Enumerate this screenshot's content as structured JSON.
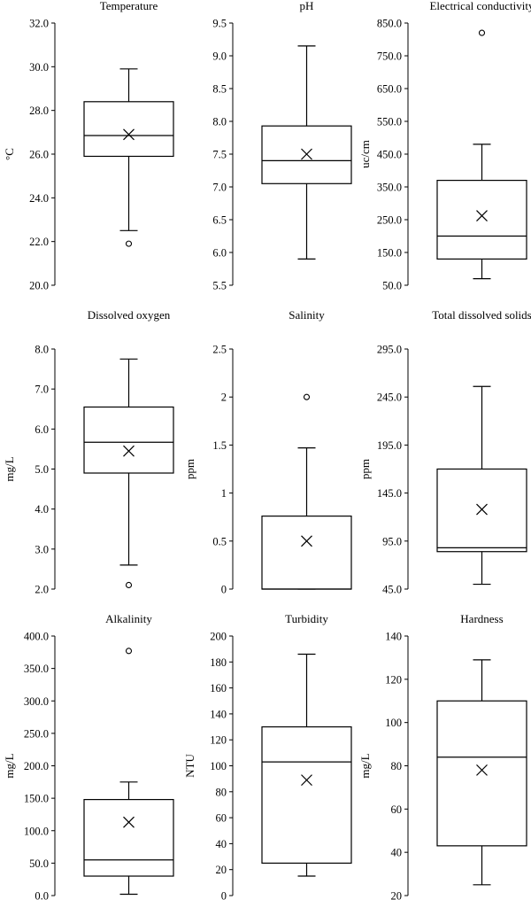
{
  "chart_data": [
    {
      "type": "box",
      "title": "Temperature",
      "ylabel": "°C",
      "ylim": [
        20,
        32
      ],
      "ticks": [
        20,
        22,
        24,
        26,
        28,
        30,
        32
      ],
      "tick_labels": [
        "20.0",
        "22.0",
        "24.0",
        "26.0",
        "28.0",
        "30.0",
        "32.0"
      ],
      "whisker_low": 22.5,
      "q1": 25.9,
      "median": 26.85,
      "q3": 28.4,
      "whisker_high": 29.9,
      "mean": 26.9,
      "outliers": [
        21.9
      ]
    },
    {
      "type": "box",
      "title": "pH",
      "ylabel": "",
      "ylim": [
        5.5,
        9.5
      ],
      "ticks": [
        5.5,
        6.0,
        6.5,
        7.0,
        7.5,
        8.0,
        8.5,
        9.0,
        9.5
      ],
      "tick_labels": [
        "5.5",
        "6.0",
        "6.5",
        "7.0",
        "7.5",
        "8.0",
        "8.5",
        "9.0",
        "9.5"
      ],
      "whisker_low": 5.9,
      "q1": 7.05,
      "median": 7.4,
      "q3": 7.93,
      "whisker_high": 9.15,
      "mean": 7.5,
      "outliers": []
    },
    {
      "type": "box",
      "title": "Electrical conductivity",
      "ylabel": "uc/cm",
      "ylim": [
        50,
        850
      ],
      "ticks": [
        50,
        150,
        250,
        350,
        450,
        550,
        650,
        750,
        850
      ],
      "tick_labels": [
        "50.0",
        "150.0",
        "250.0",
        "350.0",
        "450.0",
        "550.0",
        "650.0",
        "750.0",
        "850.0"
      ],
      "whisker_low": 70,
      "q1": 130,
      "median": 200,
      "q3": 370,
      "whisker_high": 480,
      "mean": 262,
      "outliers": [
        820
      ]
    },
    {
      "type": "box",
      "title": "Dissolved oxygen",
      "ylabel": "mg/L",
      "ylim": [
        2,
        8
      ],
      "ticks": [
        2,
        3,
        4,
        5,
        6,
        7,
        8
      ],
      "tick_labels": [
        "2.0",
        "3.0",
        "4.0",
        "5.0",
        "6.0",
        "7.0",
        "8.0"
      ],
      "whisker_low": 2.6,
      "q1": 4.9,
      "median": 5.67,
      "q3": 6.55,
      "whisker_high": 7.75,
      "mean": 5.45,
      "outliers": [
        2.1
      ]
    },
    {
      "type": "box",
      "title": "Salinity",
      "ylabel": "ppm",
      "ylim": [
        0,
        2.5
      ],
      "ticks": [
        0,
        0.5,
        1,
        1.5,
        2,
        2.5
      ],
      "tick_labels": [
        "0",
        "0.5",
        "1",
        "1.5",
        "2",
        "2.5"
      ],
      "whisker_low": 0,
      "q1": 0,
      "median": 0,
      "q3": 0.76,
      "whisker_high": 1.47,
      "mean": 0.5,
      "outliers": [
        2.0
      ]
    },
    {
      "type": "box",
      "title": "Total dissolved solids",
      "ylabel": "ppm",
      "ylim": [
        45,
        295
      ],
      "ticks": [
        45,
        95,
        145,
        195,
        245,
        295
      ],
      "tick_labels": [
        "45.0",
        "95.0",
        "145.0",
        "195.0",
        "245.0",
        "295.0"
      ],
      "whisker_low": 50,
      "q1": 84,
      "median": 88,
      "q3": 170,
      "whisker_high": 256,
      "mean": 128,
      "outliers": []
    },
    {
      "type": "box",
      "title": "Alkalinity",
      "ylabel": "mg/L",
      "ylim": [
        0,
        400
      ],
      "ticks": [
        0,
        50,
        100,
        150,
        200,
        250,
        300,
        350,
        400
      ],
      "tick_labels": [
        "0.0",
        "50.0",
        "100.0",
        "150.0",
        "200.0",
        "250.0",
        "300.0",
        "350.0",
        "400.0"
      ],
      "whisker_low": 2,
      "q1": 30,
      "median": 55,
      "q3": 148,
      "whisker_high": 175,
      "mean": 113,
      "outliers": [
        377
      ]
    },
    {
      "type": "box",
      "title": "Turbidity",
      "ylabel": "NTU",
      "ylim": [
        0,
        200
      ],
      "ticks": [
        0,
        20,
        40,
        60,
        80,
        100,
        120,
        140,
        160,
        180,
        200
      ],
      "tick_labels": [
        "0",
        "20",
        "40",
        "60",
        "80",
        "100",
        "120",
        "140",
        "160",
        "180",
        "200"
      ],
      "whisker_low": 15,
      "q1": 25,
      "median": 103,
      "q3": 130,
      "whisker_high": 186,
      "mean": 89,
      "outliers": []
    },
    {
      "type": "box",
      "title": "Hardness",
      "ylabel": "mg/L",
      "ylim": [
        20,
        140
      ],
      "ticks": [
        20,
        40,
        60,
        80,
        100,
        120,
        140
      ],
      "tick_labels": [
        "20",
        "40",
        "60",
        "80",
        "100",
        "120",
        "140"
      ],
      "whisker_low": 25,
      "q1": 43,
      "median": 84,
      "q3": 110,
      "whisker_high": 129,
      "mean": 78,
      "outliers": []
    }
  ]
}
